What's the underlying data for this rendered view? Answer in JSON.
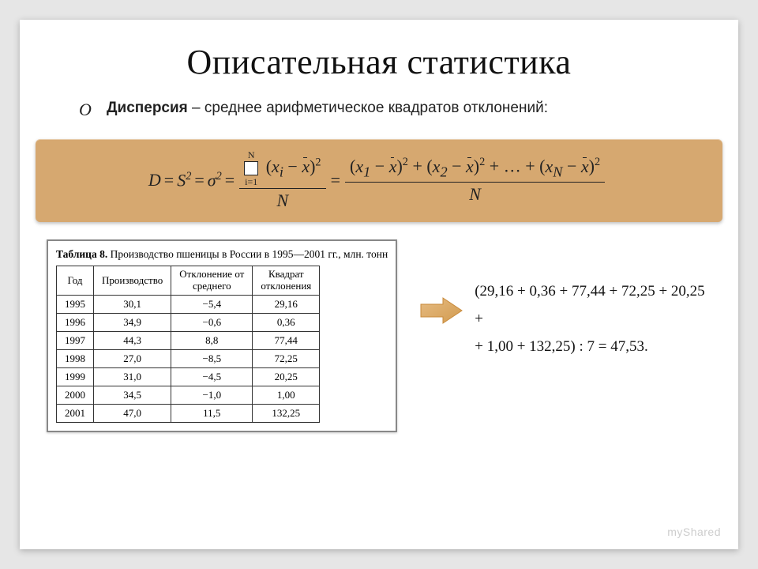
{
  "title": "Описательная статистика",
  "bullet": "O",
  "definition_term": "Дисперсия",
  "definition_rest": " – среднее арифметическое квадратов отклонений:",
  "formula": {
    "lhs1": "D",
    "lhs2": "S",
    "lhs3": "σ",
    "sum_upper": "N",
    "sum_lower": "i=1",
    "xi": "x",
    "xi_sub": "i",
    "xbar": "x",
    "N": "N",
    "x1_sub": "1",
    "x2_sub": "2",
    "dots": "…",
    "xN_sub": "N"
  },
  "table": {
    "caption_label": "Таблица 8.",
    "caption_rest": "Производство пшеницы в России в 1995—2001 гг., млн. тонн",
    "columns": [
      "Год",
      "Производство",
      "Отклонение от среднего",
      "Квадрат отклонения"
    ],
    "rows": [
      [
        "1995",
        "30,1",
        "−5,4",
        "29,16"
      ],
      [
        "1996",
        "34,9",
        "−0,6",
        "0,36"
      ],
      [
        "1997",
        "44,3",
        "8,8",
        "77,44"
      ],
      [
        "1998",
        "27,0",
        "−8,5",
        "72,25"
      ],
      [
        "1999",
        "31,0",
        "−4,5",
        "20,25"
      ],
      [
        "2000",
        "34,5",
        "−1,0",
        "1,00"
      ],
      [
        "2001",
        "47,0",
        "11,5",
        "132,25"
      ]
    ]
  },
  "arrow": {
    "fill": "#dca45a",
    "stroke": "#c88a3a"
  },
  "calculation": {
    "line1": "(29,16 + 0,36 + 77,44 + 72,25 + 20,25 +",
    "line2": "+ 1,00 + 132,25) : 7 = 47,53."
  },
  "watermark": "myShared",
  "colors": {
    "page_bg": "#e6e6e6",
    "slide_bg": "#ffffff",
    "formula_bg": "#d6a870",
    "text": "#222222"
  }
}
